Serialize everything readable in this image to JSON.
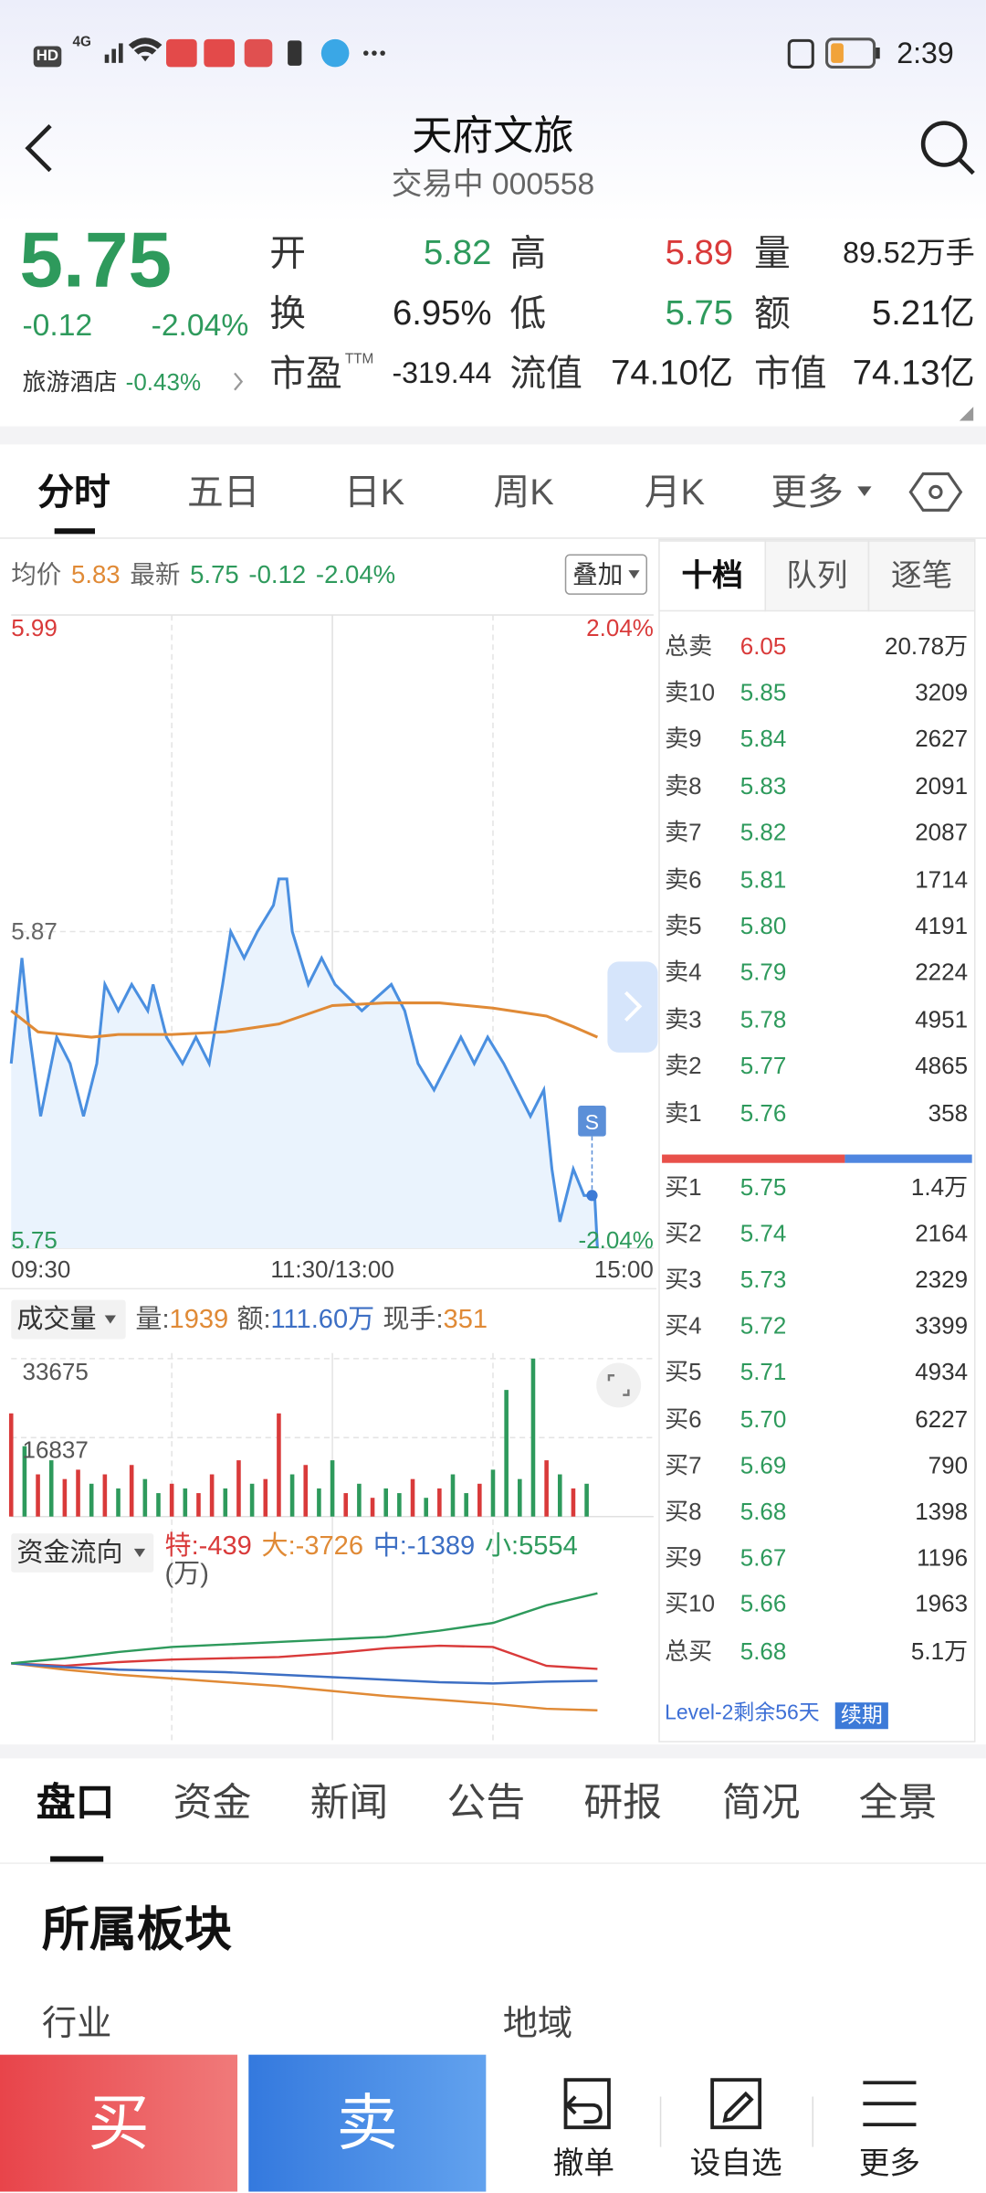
{
  "status_bar": {
    "hd": "HD",
    "network": "4G",
    "time": "2:39"
  },
  "header": {
    "title": "天府文旅",
    "status": "交易中",
    "code": "000558"
  },
  "quote": {
    "price": "5.75",
    "change": "-0.12",
    "change_pct": "-2.04%",
    "color": "#2e9a5c",
    "sector": "旅游酒店",
    "sector_change": "-0.43%",
    "stats": [
      {
        "label": "开",
        "value": "5.82",
        "color": "#2e9a5c"
      },
      {
        "label": "高",
        "value": "5.89",
        "color": "#d93a3a"
      },
      {
        "label": "量",
        "value": "89.52万手",
        "color": "#222222"
      },
      {
        "label": "换",
        "value": "6.95%",
        "color": "#222222"
      },
      {
        "label": "低",
        "value": "5.75",
        "color": "#2e9a5c"
      },
      {
        "label": "额",
        "value": "5.21亿",
        "color": "#222222"
      },
      {
        "label": "市盈",
        "sup": "TTM",
        "value": "-319.44",
        "color": "#222222"
      },
      {
        "label": "流值",
        "value": "74.10亿",
        "color": "#222222"
      },
      {
        "label": "市值",
        "value": "74.13亿",
        "color": "#222222"
      }
    ]
  },
  "chart_tabs": [
    "分时",
    "五日",
    "日K",
    "周K",
    "月K",
    "更多"
  ],
  "intraday": {
    "legend": {
      "avg_label": "均价",
      "avg": "5.83",
      "latest_label": "最新",
      "latest": "5.75",
      "change": "-0.12",
      "change_pct": "-2.04%"
    },
    "overlay": "叠加",
    "ylim": [
      5.75,
      5.99
    ],
    "yticks": [
      5.75,
      5.87,
      5.99
    ],
    "y2lim": [
      -2.04,
      2.04
    ],
    "y2ticks": [
      {
        "value": -2.04,
        "label": "-2.04%"
      },
      {
        "value": 2.04,
        "label": "2.04%"
      }
    ],
    "xlim": [
      0,
      240
    ],
    "xticks": [
      {
        "value": 0,
        "label": "09:30"
      },
      {
        "value": 120,
        "label": "11:30/13:00"
      },
      {
        "value": 240,
        "label": "15:00"
      }
    ],
    "up_color": "#d93a3a",
    "down_color": "#2e9a5c",
    "price": {
      "color": "#4a8fe0",
      "x": [
        0,
        4,
        7,
        11,
        17,
        22,
        27,
        32,
        35,
        40,
        45,
        51,
        53,
        58,
        64,
        69,
        74,
        79,
        82,
        87,
        92,
        98,
        100,
        103,
        105,
        111,
        116,
        121,
        131,
        142,
        147,
        152,
        158,
        163,
        168,
        173,
        178,
        184,
        189,
        194,
        199,
        202,
        205,
        210,
        214,
        218,
        219
      ],
      "values": [
        5.82,
        5.86,
        5.83,
        5.8,
        5.83,
        5.82,
        5.8,
        5.82,
        5.85,
        5.84,
        5.85,
        5.84,
        5.85,
        5.83,
        5.82,
        5.83,
        5.82,
        5.85,
        5.87,
        5.86,
        5.87,
        5.88,
        5.89,
        5.89,
        5.87,
        5.85,
        5.86,
        5.85,
        5.84,
        5.85,
        5.84,
        5.82,
        5.81,
        5.82,
        5.83,
        5.82,
        5.83,
        5.82,
        5.81,
        5.8,
        5.81,
        5.78,
        5.76,
        5.78,
        5.77,
        5.77,
        5.75
      ]
    },
    "average": {
      "color": "#e08a36",
      "x": [
        0,
        10,
        20,
        30,
        40,
        60,
        80,
        100,
        120,
        140,
        160,
        180,
        200,
        210,
        219
      ],
      "values": [
        5.84,
        5.832,
        5.831,
        5.83,
        5.831,
        5.831,
        5.832,
        5.835,
        5.842,
        5.843,
        5.843,
        5.841,
        5.838,
        5.834,
        5.83
      ]
    },
    "signal": {
      "label": "S",
      "x": 217,
      "value": 5.77
    }
  },
  "volume": {
    "menu": "成交量",
    "items": [
      {
        "label": "量:",
        "value": "1939",
        "color": "#e08a36"
      },
      {
        "label": "额:",
        "value": "111.60万",
        "color": "#3d6fc4"
      },
      {
        "label": "现手:",
        "value": "351",
        "color": "#e08a36"
      }
    ],
    "ylim": [
      0,
      33675
    ],
    "yticks": [
      16837,
      33675
    ],
    "xlim": [
      0,
      240
    ],
    "x": [
      0,
      5,
      10,
      15,
      20,
      25,
      30,
      35,
      40,
      45,
      50,
      55,
      60,
      65,
      70,
      75,
      80,
      85,
      90,
      95,
      100,
      105,
      110,
      115,
      120,
      125,
      130,
      135,
      140,
      145,
      150,
      155,
      160,
      165,
      170,
      175,
      180,
      185,
      190,
      195,
      200,
      205,
      210,
      215
    ],
    "values": [
      22000,
      15000,
      9000,
      12000,
      8000,
      10000,
      7000,
      9000,
      6000,
      11000,
      8000,
      5000,
      7000,
      6000,
      5000,
      9000,
      6000,
      12000,
      7000,
      8000,
      22000,
      9000,
      11000,
      6000,
      12000,
      5000,
      7000,
      4000,
      6000,
      5000,
      8000,
      4000,
      6000,
      9000,
      5000,
      7000,
      10000,
      27000,
      8000,
      33675,
      12000,
      9000,
      6000,
      7000
    ],
    "direction": [
      "up",
      "down",
      "up",
      "down",
      "up",
      "up",
      "down",
      "up",
      "down",
      "up",
      "down",
      "down",
      "up",
      "down",
      "up",
      "up",
      "down",
      "up",
      "down",
      "up",
      "up",
      "down",
      "up",
      "down",
      "down",
      "up",
      "down",
      "up",
      "down",
      "down",
      "up",
      "down",
      "up",
      "down",
      "down",
      "up",
      "down",
      "down",
      "down",
      "down",
      "up",
      "down",
      "up",
      "down"
    ],
    "up_color": "#d93a3a",
    "down_color": "#2e9a5c"
  },
  "fund_flow": {
    "menu": "资金流向",
    "unit": "(万)",
    "xlim": [
      0,
      240
    ],
    "ylim": [
      -6100,
      6100
    ],
    "x": [
      0,
      20,
      40,
      60,
      80,
      100,
      120,
      140,
      160,
      180,
      200,
      219
    ],
    "series": [
      {
        "name": "特:",
        "color": "#d93a3a",
        "values": [
          0,
          -200,
          100,
          300,
          400,
          500,
          800,
          1200,
          1400,
          1300,
          -200,
          -439
        ]
      },
      {
        "name": "大:",
        "color": "#e08a36",
        "values": [
          0,
          -500,
          -900,
          -1200,
          -1500,
          -1800,
          -2200,
          -2600,
          -2900,
          -3200,
          -3600,
          -3726
        ]
      },
      {
        "name": "中:",
        "color": "#3d6fc4",
        "values": [
          0,
          -300,
          -500,
          -600,
          -700,
          -900,
          -1100,
          -1300,
          -1500,
          -1600,
          -1450,
          -1389
        ]
      },
      {
        "name": "小:",
        "color": "#2e9a5c",
        "values": [
          0,
          400,
          900,
          1300,
          1500,
          1700,
          1900,
          2100,
          2600,
          3200,
          4600,
          5554
        ]
      }
    ]
  },
  "order_book": {
    "tabs": [
      "十档",
      "队列",
      "逐笔"
    ],
    "asks": [
      {
        "label": "总卖",
        "price": "6.05",
        "volume": "20.78万"
      },
      {
        "label": "卖10",
        "price": "5.85",
        "volume": "3209"
      },
      {
        "label": "卖9",
        "price": "5.84",
        "volume": "2627"
      },
      {
        "label": "卖8",
        "price": "5.83",
        "volume": "2091"
      },
      {
        "label": "卖7",
        "price": "5.82",
        "volume": "2087"
      },
      {
        "label": "卖6",
        "price": "5.81",
        "volume": "1714"
      },
      {
        "label": "卖5",
        "price": "5.80",
        "volume": "4191"
      },
      {
        "label": "卖4",
        "price": "5.79",
        "volume": "2224"
      },
      {
        "label": "卖3",
        "price": "5.78",
        "volume": "4951"
      },
      {
        "label": "卖2",
        "price": "5.77",
        "volume": "4865"
      },
      {
        "label": "卖1",
        "price": "5.76",
        "volume": "358"
      }
    ],
    "ratio": [
      59,
      41
    ],
    "bids": [
      {
        "label": "买1",
        "price": "5.75",
        "volume": "1.4万"
      },
      {
        "label": "买2",
        "price": "5.74",
        "volume": "2164"
      },
      {
        "label": "买3",
        "price": "5.73",
        "volume": "2329"
      },
      {
        "label": "买4",
        "price": "5.72",
        "volume": "3399"
      },
      {
        "label": "买5",
        "price": "5.71",
        "volume": "4934"
      },
      {
        "label": "买6",
        "price": "5.70",
        "volume": "6227"
      },
      {
        "label": "买7",
        "price": "5.69",
        "volume": "790"
      },
      {
        "label": "买8",
        "price": "5.68",
        "volume": "1398"
      },
      {
        "label": "买9",
        "price": "5.67",
        "volume": "1196"
      },
      {
        "label": "买10",
        "price": "5.66",
        "volume": "1963"
      },
      {
        "label": "总买",
        "price": "5.68",
        "volume": "5.1万"
      }
    ],
    "level2": "Level-2剩余56天",
    "renew": "续期"
  },
  "detail_tabs": [
    "盘口",
    "资金",
    "新闻",
    "公告",
    "研报",
    "简况",
    "全景"
  ],
  "section": {
    "title": "所属板块",
    "industry": "行业",
    "region": "地域"
  },
  "actions": {
    "buy": "买",
    "sell": "卖",
    "items": [
      "撤单",
      "设自选",
      "更多"
    ]
  }
}
